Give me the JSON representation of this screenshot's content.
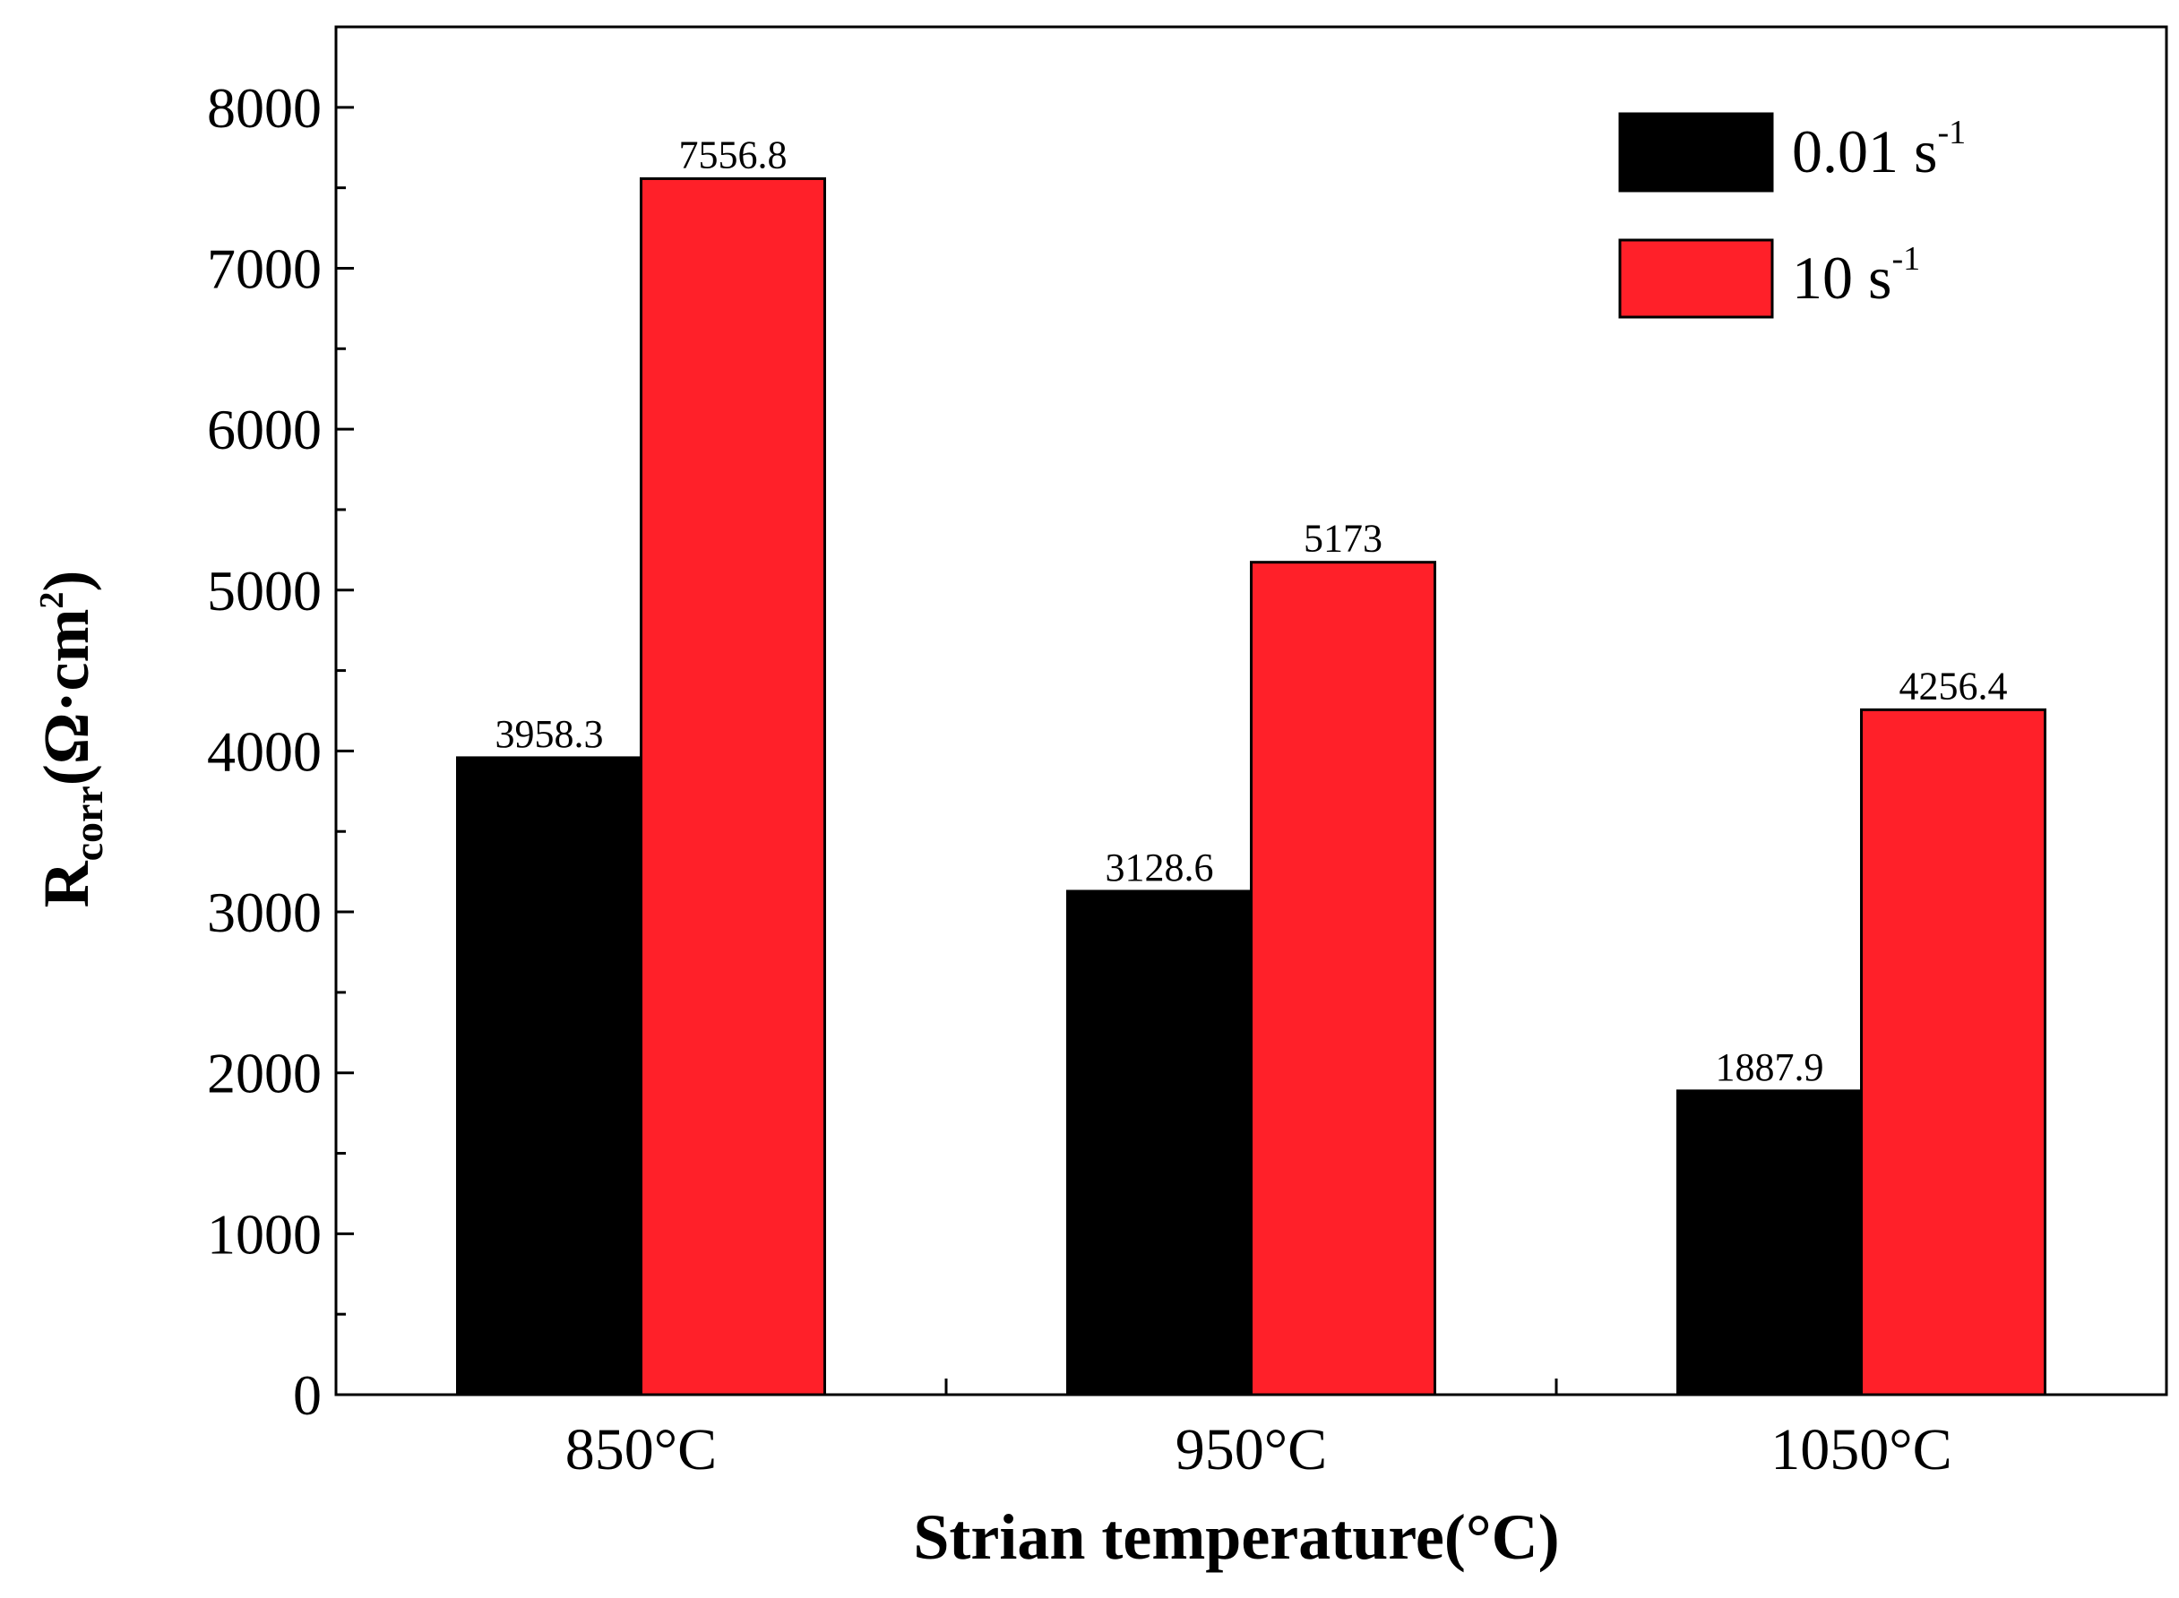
{
  "chart_data": {
    "type": "bar",
    "title": "",
    "xlabel": "Strian temperature(°C)",
    "ylabel": {
      "main": "R",
      "sub": "corr",
      "unit_open": "(Ω·cm",
      "unit_sup": "2",
      "unit_close": ")"
    },
    "categories": [
      "850°C",
      "950°C",
      "1050°C"
    ],
    "ylim": [
      0,
      8500
    ],
    "yticks": [
      0,
      1000,
      2000,
      3000,
      4000,
      5000,
      6000,
      7000,
      8000
    ],
    "grid": false,
    "legend_position": "top-right",
    "series": [
      {
        "name": "0.01 s",
        "name_sup": "-1",
        "color": "#000000",
        "values": [
          3958.3,
          3128.6,
          1887.9
        ],
        "labels": [
          "3958.3",
          "3128.6",
          "1887.9"
        ]
      },
      {
        "name": "10 s",
        "name_sup": "-1",
        "color": "#ff2029",
        "values": [
          7556.8,
          5173,
          4256.4
        ],
        "labels": [
          "7556.8",
          "5173",
          "4256.4"
        ]
      }
    ]
  }
}
